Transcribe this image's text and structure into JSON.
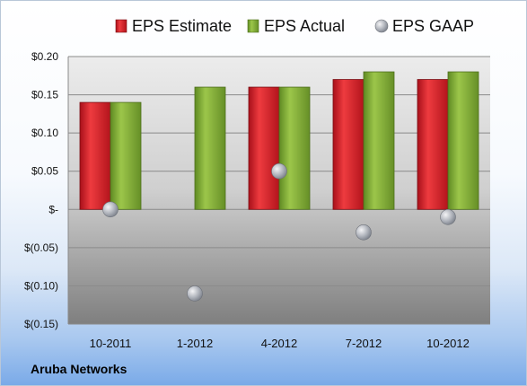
{
  "company": "Aruba Networks",
  "chart_data": {
    "type": "bar",
    "categories": [
      "10-2011",
      "1-2012",
      "4-2012",
      "7-2012",
      "10-2012"
    ],
    "series": [
      {
        "name": "EPS Estimate",
        "type": "bar",
        "color": "#d9262e",
        "values": [
          0.14,
          null,
          0.16,
          0.17,
          0.17
        ]
      },
      {
        "name": "EPS Actual",
        "type": "bar",
        "color": "#8bb33a",
        "values": [
          0.14,
          0.16,
          0.16,
          0.18,
          0.18
        ]
      },
      {
        "name": "EPS GAAP",
        "type": "scatter",
        "color": "#b8bcc4",
        "values": [
          0.0,
          -0.11,
          0.05,
          -0.03,
          -0.01
        ]
      }
    ],
    "ylim": [
      -0.15,
      0.2
    ],
    "yticks": [
      0.2,
      0.15,
      0.1,
      0.05,
      0,
      -0.05,
      -0.1,
      -0.15
    ],
    "ytick_labels": [
      "$0.20",
      "$0.15",
      "$0.10",
      "$0.05",
      "$-",
      "$(0.05)",
      "$(0.10)",
      "$(0.15)"
    ],
    "grid": true,
    "legend_position": "top"
  }
}
